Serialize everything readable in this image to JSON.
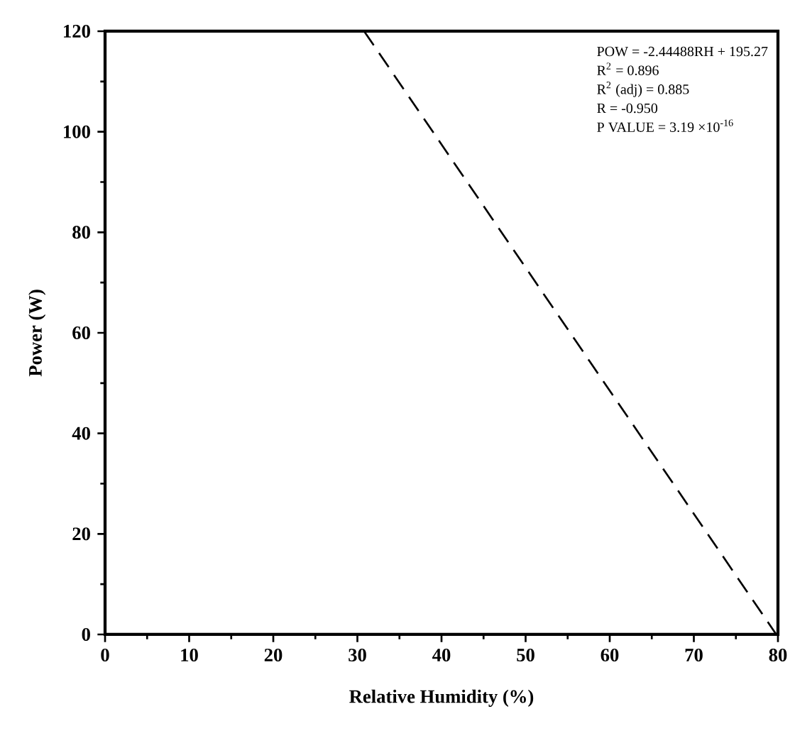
{
  "chart_data": {
    "type": "line",
    "xlabel": "Relative Humidity (%)",
    "ylabel": "Power (W)",
    "x": [
      30.8,
      79.8
    ],
    "series": [
      {
        "color": "#000000",
        "values": [
          120,
          0
        ],
        "line_style": "dashed"
      }
    ],
    "xlim": [
      0,
      80
    ],
    "xticks": [
      0,
      10,
      20,
      30,
      40,
      50,
      60,
      70,
      80
    ],
    "ylim": [
      0,
      120
    ],
    "yticks": [
      0,
      20,
      40,
      60,
      80,
      100,
      120
    ],
    "marker": "none",
    "annotations": [
      "POW = -2.44488RH + 195.27",
      "R$^{2}$ = 0.896",
      "R$^{2}$ (adj) = 0.885",
      "R = -0.950",
      "P VALUE = 3.19 ×10$^{-16}$"
    ]
  }
}
